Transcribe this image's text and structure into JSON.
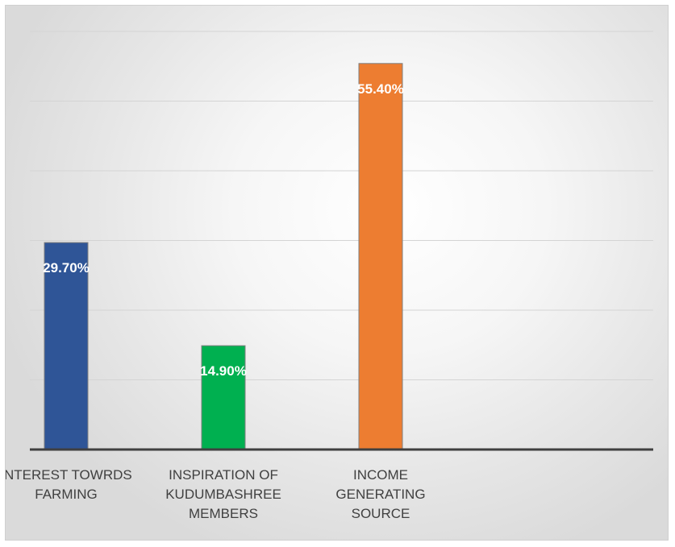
{
  "chart_data": {
    "type": "bar",
    "categories": [
      [
        "INTEREST TOWRDS",
        "FARMING"
      ],
      [
        "INSPIRATION OF",
        "KUDUMBASHREE",
        "MEMBERS"
      ],
      [
        "INCOME",
        "GENERATING",
        "SOURCE"
      ]
    ],
    "values": [
      29.7,
      14.9,
      55.4
    ],
    "labels": [
      "29.70%",
      "14.90%",
      "55.40%"
    ],
    "colors": [
      "#2f5597",
      "#00b050",
      "#ed7d31"
    ],
    "ylim": [
      0,
      60
    ],
    "ytick_step": 10,
    "grid": true,
    "legend": "none"
  }
}
